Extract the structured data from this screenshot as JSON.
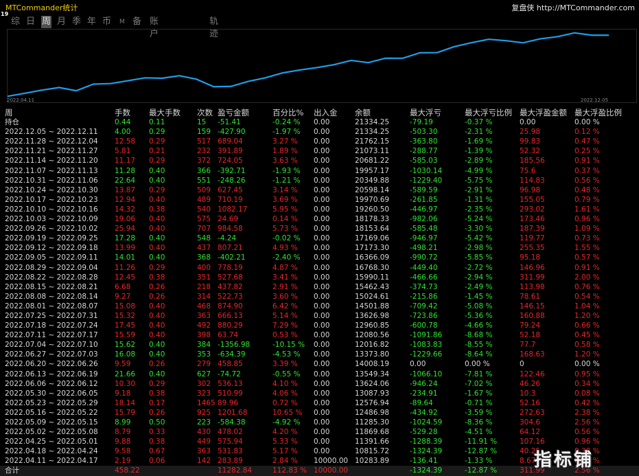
{
  "app_title": "MTCommander统计",
  "corner_number": "19",
  "brand": "复盘侠 http://MTCommander.com",
  "tabs": [
    "综",
    "日",
    "周",
    "月",
    "季",
    "年",
    "币",
    "M",
    "备",
    "账户",
    "轨迹"
  ],
  "active_tab": "周",
  "chart": {
    "start_label": "2022.04.11",
    "end_label": "2022.12.05",
    "line_color": "#1e9fe8"
  },
  "columns": [
    "周",
    "手数",
    "最大手数",
    "次数",
    "盈亏金额",
    "百分比%",
    "出入金",
    "余额",
    "最大浮亏",
    "最大浮亏比例",
    "最大浮盈金额",
    "最大浮盈比例"
  ],
  "open_row": {
    "label": "持仓",
    "lots": "0.44",
    "max_lots": "0.11",
    "trades": "15",
    "pnl": "-51.41",
    "pct": "-0.24 %",
    "deposit": "0.00",
    "balance": "21334.25",
    "max_dd": "-79.19",
    "max_dd_pct": "-0.37 %",
    "max_fp": "0.00",
    "max_fp_pct": "0.00 %"
  },
  "rows": [
    {
      "week": "2022.12.05 ~ 2022.12.11",
      "lots": "4.00",
      "max_lots": "0.29",
      "trades": "159",
      "pnl": "-427.90",
      "pct": "-1.97 %",
      "deposit": "0.00",
      "balance": "21334.25",
      "max_dd": "-503.30",
      "max_dd_pct": "-2.31 %",
      "max_fp": "25.98",
      "max_fp_pct": "0.12 %",
      "color": "green"
    },
    {
      "week": "2022.11.28 ~ 2022.12.04",
      "lots": "12.58",
      "max_lots": "0.29",
      "trades": "517",
      "pnl": "689.04",
      "pct": "3.27 %",
      "deposit": "0.00",
      "balance": "21762.15",
      "max_dd": "-363.80",
      "max_dd_pct": "-1.69 %",
      "max_fp": "99.83",
      "max_fp_pct": "0.47 %",
      "color": "red"
    },
    {
      "week": "2022.11.21 ~ 2022.11.27",
      "lots": "5.81",
      "max_lots": "0.21",
      "trades": "232",
      "pnl": "391.89",
      "pct": "1.89 %",
      "deposit": "0.00",
      "balance": "21073.11",
      "max_dd": "-288.77",
      "max_dd_pct": "-1.39 %",
      "max_fp": "52.32",
      "max_fp_pct": "0.25 %",
      "color": "red"
    },
    {
      "week": "2022.11.14 ~ 2022.11.20",
      "lots": "11.17",
      "max_lots": "0.29",
      "trades": "372",
      "pnl": "724.05",
      "pct": "3.63 %",
      "deposit": "0.00",
      "balance": "20681.22",
      "max_dd": "-585.03",
      "max_dd_pct": "-2.89 %",
      "max_fp": "185.56",
      "max_fp_pct": "0.91 %",
      "color": "red"
    },
    {
      "week": "2022.11.07 ~ 2022.11.13",
      "lots": "11.28",
      "max_lots": "0.40",
      "trades": "366",
      "pnl": "-392.71",
      "pct": "-1.93 %",
      "deposit": "0.00",
      "balance": "19957.17",
      "max_dd": "-1030.14",
      "max_dd_pct": "-4.99 %",
      "max_fp": "75.6",
      "max_fp_pct": "0.37 %",
      "color": "green"
    },
    {
      "week": "2022.10.31 ~ 2022.11.06",
      "lots": "22.64",
      "max_lots": "0.40",
      "trades": "551",
      "pnl": "-248.26",
      "pct": "-1.21 %",
      "deposit": "0.00",
      "balance": "20349.88",
      "max_dd": "-1229.40",
      "max_dd_pct": "-5.75 %",
      "max_fp": "114.83",
      "max_fp_pct": "0.56 %",
      "color": "green"
    },
    {
      "week": "2022.10.24 ~ 2022.10.30",
      "lots": "13.87",
      "max_lots": "0.29",
      "trades": "509",
      "pnl": "627.45",
      "pct": "3.14 %",
      "deposit": "0.00",
      "balance": "20598.14",
      "max_dd": "-589.59",
      "max_dd_pct": "-2.91 %",
      "max_fp": "96.98",
      "max_fp_pct": "0.48 %",
      "color": "red"
    },
    {
      "week": "2022.10.17 ~ 2022.10.23",
      "lots": "12.94",
      "max_lots": "0.40",
      "trades": "489",
      "pnl": "710.19",
      "pct": "3.69 %",
      "deposit": "0.00",
      "balance": "19970.69",
      "max_dd": "-261.85",
      "max_dd_pct": "-1.31 %",
      "max_fp": "155.05",
      "max_fp_pct": "0.79 %",
      "color": "red"
    },
    {
      "week": "2022.10.10 ~ 2022.10.16",
      "lots": "14.32",
      "max_lots": "0.38",
      "trades": "540",
      "pnl": "1082.17",
      "pct": "5.95 %",
      "deposit": "0.00",
      "balance": "19260.50",
      "max_dd": "-446.97",
      "max_dd_pct": "-2.35 %",
      "max_fp": "293.02",
      "max_fp_pct": "1.61 %",
      "color": "red"
    },
    {
      "week": "2022.10.03 ~ 2022.10.09",
      "lots": "19.06",
      "max_lots": "0.40",
      "trades": "575",
      "pnl": "24.69",
      "pct": "0.14 %",
      "deposit": "0.00",
      "balance": "18178.33",
      "max_dd": "-982.06",
      "max_dd_pct": "-5.24 %",
      "max_fp": "173.46",
      "max_fp_pct": "0.96 %",
      "color": "red"
    },
    {
      "week": "2022.09.26 ~ 2022.10.02",
      "lots": "25.94",
      "max_lots": "0.40",
      "trades": "707",
      "pnl": "984.58",
      "pct": "5.73 %",
      "deposit": "0.00",
      "balance": "18153.64",
      "max_dd": "-585.48",
      "max_dd_pct": "-3.30 %",
      "max_fp": "187.39",
      "max_fp_pct": "1.09 %",
      "color": "red"
    },
    {
      "week": "2022.09.19 ~ 2022.09.25",
      "lots": "17.28",
      "max_lots": "0.40",
      "trades": "548",
      "pnl": "-4.24",
      "pct": "-0.02 %",
      "deposit": "0.00",
      "balance": "17169.06",
      "max_dd": "-946.97",
      "max_dd_pct": "-5.42 %",
      "max_fp": "119.77",
      "max_fp_pct": "0.73 %",
      "color": "green"
    },
    {
      "week": "2022.09.12 ~ 2022.09.18",
      "lots": "13.99",
      "max_lots": "0.40",
      "trades": "437",
      "pnl": "807.21",
      "pct": "4.93 %",
      "deposit": "0.00",
      "balance": "17173.30",
      "max_dd": "-498.21",
      "max_dd_pct": "-2.98 %",
      "max_fp": "255.35",
      "max_fp_pct": "1.55 %",
      "color": "red"
    },
    {
      "week": "2022.09.05 ~ 2022.09.11",
      "lots": "14.01",
      "max_lots": "0.40",
      "trades": "368",
      "pnl": "-402.21",
      "pct": "-2.40 %",
      "deposit": "0.00",
      "balance": "16366.09",
      "max_dd": "-990.72",
      "max_dd_pct": "-5.85 %",
      "max_fp": "95.18",
      "max_fp_pct": "0.57 %",
      "color": "green"
    },
    {
      "week": "2022.08.29 ~ 2022.09.04",
      "lots": "11.26",
      "max_lots": "0.29",
      "trades": "400",
      "pnl": "778.19",
      "pct": "4.87 %",
      "deposit": "0.00",
      "balance": "16768.30",
      "max_dd": "-449.40",
      "max_dd_pct": "-2.72 %",
      "max_fp": "146.96",
      "max_fp_pct": "0.91 %",
      "color": "red"
    },
    {
      "week": "2022.08.22 ~ 2022.08.28",
      "lots": "12.45",
      "max_lots": "0.38",
      "trades": "351",
      "pnl": "527.68",
      "pct": "3.41 %",
      "deposit": "0.00",
      "balance": "15990.11",
      "max_dd": "-466.66",
      "max_dd_pct": "-2.94 %",
      "max_fp": "311.99",
      "max_fp_pct": "2.00 %",
      "color": "red"
    },
    {
      "week": "2022.08.15 ~ 2022.08.21",
      "lots": "6.68",
      "max_lots": "0.26",
      "trades": "218",
      "pnl": "437.82",
      "pct": "2.91 %",
      "deposit": "0.00",
      "balance": "15462.43",
      "max_dd": "-374.73",
      "max_dd_pct": "-2.49 %",
      "max_fp": "113.98",
      "max_fp_pct": "0.76 %",
      "color": "red"
    },
    {
      "week": "2022.08.08 ~ 2022.08.14",
      "lots": "9.27",
      "max_lots": "0.26",
      "trades": "314",
      "pnl": "522.73",
      "pct": "3.60 %",
      "deposit": "0.00",
      "balance": "15024.61",
      "max_dd": "-215.86",
      "max_dd_pct": "-1.45 %",
      "max_fp": "78.61",
      "max_fp_pct": "0.54 %",
      "color": "red"
    },
    {
      "week": "2022.08.01 ~ 2022.08.07",
      "lots": "15.08",
      "max_lots": "0.40",
      "trades": "468",
      "pnl": "874.90",
      "pct": "6.42 %",
      "deposit": "0.00",
      "balance": "14501.88",
      "max_dd": "-709.42",
      "max_dd_pct": "-5.08 %",
      "max_fp": "146.15",
      "max_fp_pct": "1.04 %",
      "color": "red"
    },
    {
      "week": "2022.07.25 ~ 2022.07.31",
      "lots": "15.32",
      "max_lots": "0.40",
      "trades": "363",
      "pnl": "666.13",
      "pct": "5.14 %",
      "deposit": "0.00",
      "balance": "13626.98",
      "max_dd": "-723.86",
      "max_dd_pct": "-5.36 %",
      "max_fp": "160.88",
      "max_fp_pct": "1.20 %",
      "color": "red"
    },
    {
      "week": "2022.07.18 ~ 2022.07.24",
      "lots": "17.45",
      "max_lots": "0.40",
      "trades": "492",
      "pnl": "880.29",
      "pct": "7.29 %",
      "deposit": "0.00",
      "balance": "12960.85",
      "max_dd": "-600.78",
      "max_dd_pct": "-4.66 %",
      "max_fp": "79.24",
      "max_fp_pct": "0.66 %",
      "color": "red"
    },
    {
      "week": "2022.07.11 ~ 2022.07.17",
      "lots": "15.59",
      "max_lots": "0.40",
      "trades": "398",
      "pnl": "63.74",
      "pct": "0.53 %",
      "deposit": "0.00",
      "balance": "12080.56",
      "max_dd": "-1091.86",
      "max_dd_pct": "-8.68 %",
      "max_fp": "52.18",
      "max_fp_pct": "0.45 %",
      "color": "red"
    },
    {
      "week": "2022.07.04 ~ 2022.07.10",
      "lots": "15.62",
      "max_lots": "0.40",
      "trades": "384",
      "pnl": "-1356.98",
      "pct": "-10.15 %",
      "deposit": "0.00",
      "balance": "12016.82",
      "max_dd": "-1083.83",
      "max_dd_pct": "-8.55 %",
      "max_fp": "77.7",
      "max_fp_pct": "0.58 %",
      "color": "green"
    },
    {
      "week": "2022.06.27 ~ 2022.07.03",
      "lots": "16.08",
      "max_lots": "0.40",
      "trades": "353",
      "pnl": "-634.39",
      "pct": "-4.53 %",
      "deposit": "0.00",
      "balance": "13373.80",
      "max_dd": "-1229.66",
      "max_dd_pct": "-8.64 %",
      "max_fp": "168.63",
      "max_fp_pct": "1.20 %",
      "color": "green"
    },
    {
      "week": "2022.06.20 ~ 2022.06.26",
      "lots": "9.59",
      "max_lots": "0.26",
      "trades": "279",
      "pnl": "458.85",
      "pct": "3.39 %",
      "deposit": "0.00",
      "balance": "14008.19",
      "max_dd": "0.00",
      "max_dd_pct": "0.00 %",
      "max_fp": "0",
      "max_fp_pct": "0.00 %",
      "color": "red",
      "zero_tail": true
    },
    {
      "week": "2022.06.13 ~ 2022.06.19",
      "lots": "21.66",
      "max_lots": "0.40",
      "trades": "627",
      "pnl": "-74.72",
      "pct": "-0.55 %",
      "deposit": "0.00",
      "balance": "13549.34",
      "max_dd": "-1066.10",
      "max_dd_pct": "-7.81 %",
      "max_fp": "122.46",
      "max_fp_pct": "0.95 %",
      "color": "green"
    },
    {
      "week": "2022.06.06 ~ 2022.06.12",
      "lots": "10.30",
      "max_lots": "0.29",
      "trades": "302",
      "pnl": "536.13",
      "pct": "4.10 %",
      "deposit": "0.00",
      "balance": "13624.06",
      "max_dd": "-946.24",
      "max_dd_pct": "-7.02 %",
      "max_fp": "46.26",
      "max_fp_pct": "0.34 %",
      "color": "red"
    },
    {
      "week": "2022.05.30 ~ 2022.06.05",
      "lots": "9.18",
      "max_lots": "0.38",
      "trades": "323",
      "pnl": "510.99",
      "pct": "4.06 %",
      "deposit": "0.00",
      "balance": "13087.93",
      "max_dd": "-234.91",
      "max_dd_pct": "-1.67 %",
      "max_fp": "10.3",
      "max_fp_pct": "0.08 %",
      "color": "red"
    },
    {
      "week": "2022.05.23 ~ 2022.05.29",
      "lots": "18.14",
      "max_lots": "0.17",
      "trades": "1465",
      "pnl": "89.96",
      "pct": "0.72 %",
      "deposit": "0.00",
      "balance": "12576.94",
      "max_dd": "-89.64",
      "max_dd_pct": "-0.71 %",
      "max_fp": "52.16",
      "max_fp_pct": "0.42 %",
      "color": "red"
    },
    {
      "week": "2022.05.16 ~ 2022.05.22",
      "lots": "15.79",
      "max_lots": "0.26",
      "trades": "925",
      "pnl": "1201.68",
      "pct": "10.65 %",
      "deposit": "0.00",
      "balance": "12486.98",
      "max_dd": "-434.92",
      "max_dd_pct": "-3.59 %",
      "max_fp": "272.63",
      "max_fp_pct": "2.38 %",
      "color": "red"
    },
    {
      "week": "2022.05.09 ~ 2022.05.15",
      "lots": "8.99",
      "max_lots": "0.50",
      "trades": "223",
      "pnl": "-584.38",
      "pct": "-4.92 %",
      "deposit": "0.00",
      "balance": "11285.30",
      "max_dd": "-1024.59",
      "max_dd_pct": "-8.36 %",
      "max_fp": "304.6",
      "max_fp_pct": "2.56 %",
      "color": "green"
    },
    {
      "week": "2022.05.02 ~ 2022.05.08",
      "lots": "8.79",
      "max_lots": "0.33",
      "trades": "430",
      "pnl": "478.02",
      "pct": "4.20 %",
      "deposit": "0.00",
      "balance": "11869.68",
      "max_dd": "-529.28",
      "max_dd_pct": "-4.51 %",
      "max_fp": "64.12",
      "max_fp_pct": "0.56 %",
      "color": "red"
    },
    {
      "week": "2022.04.25 ~ 2022.05.01",
      "lots": "9.88",
      "max_lots": "0.38",
      "trades": "449",
      "pnl": "575.94",
      "pct": "5.33 %",
      "deposit": "0.00",
      "balance": "11391.66",
      "max_dd": "-1288.39",
      "max_dd_pct": "-11.91 %",
      "max_fp": "107.16",
      "max_fp_pct": "0.96 %",
      "color": "red"
    },
    {
      "week": "2022.04.18 ~ 2022.04.24",
      "lots": "9.58",
      "max_lots": "0.67",
      "trades": "363",
      "pnl": "531.83",
      "pct": "5.17 %",
      "deposit": "0.00",
      "balance": "10815.72",
      "max_dd": "-1324.39",
      "max_dd_pct": "-12.87 %",
      "max_fp": "40.25",
      "max_fp_pct": "0.38 %",
      "color": "red"
    },
    {
      "week": "2022.04.11 ~ 2022.04.17",
      "lots": "2.19",
      "max_lots": "0.06",
      "trades": "142",
      "pnl": "283.89",
      "pct": "2.84 %",
      "deposit": "10000.00",
      "balance": "10283.89",
      "max_dd": "-136.41",
      "max_dd_pct": "-1.33 %",
      "max_fp": "8.67",
      "max_fp_pct": "0.08 %",
      "color": "red"
    }
  ],
  "total_row": {
    "label": "合计",
    "lots": "458.22",
    "pnl": "11282.84",
    "pct": "112.83 %",
    "deposit": "10000.00",
    "max_dd": "-1324.39",
    "max_dd_pct": "-12.87 %",
    "max_fp": "311.99",
    "max_fp_pct": "2.56 %"
  },
  "watermark": "指标铺"
}
